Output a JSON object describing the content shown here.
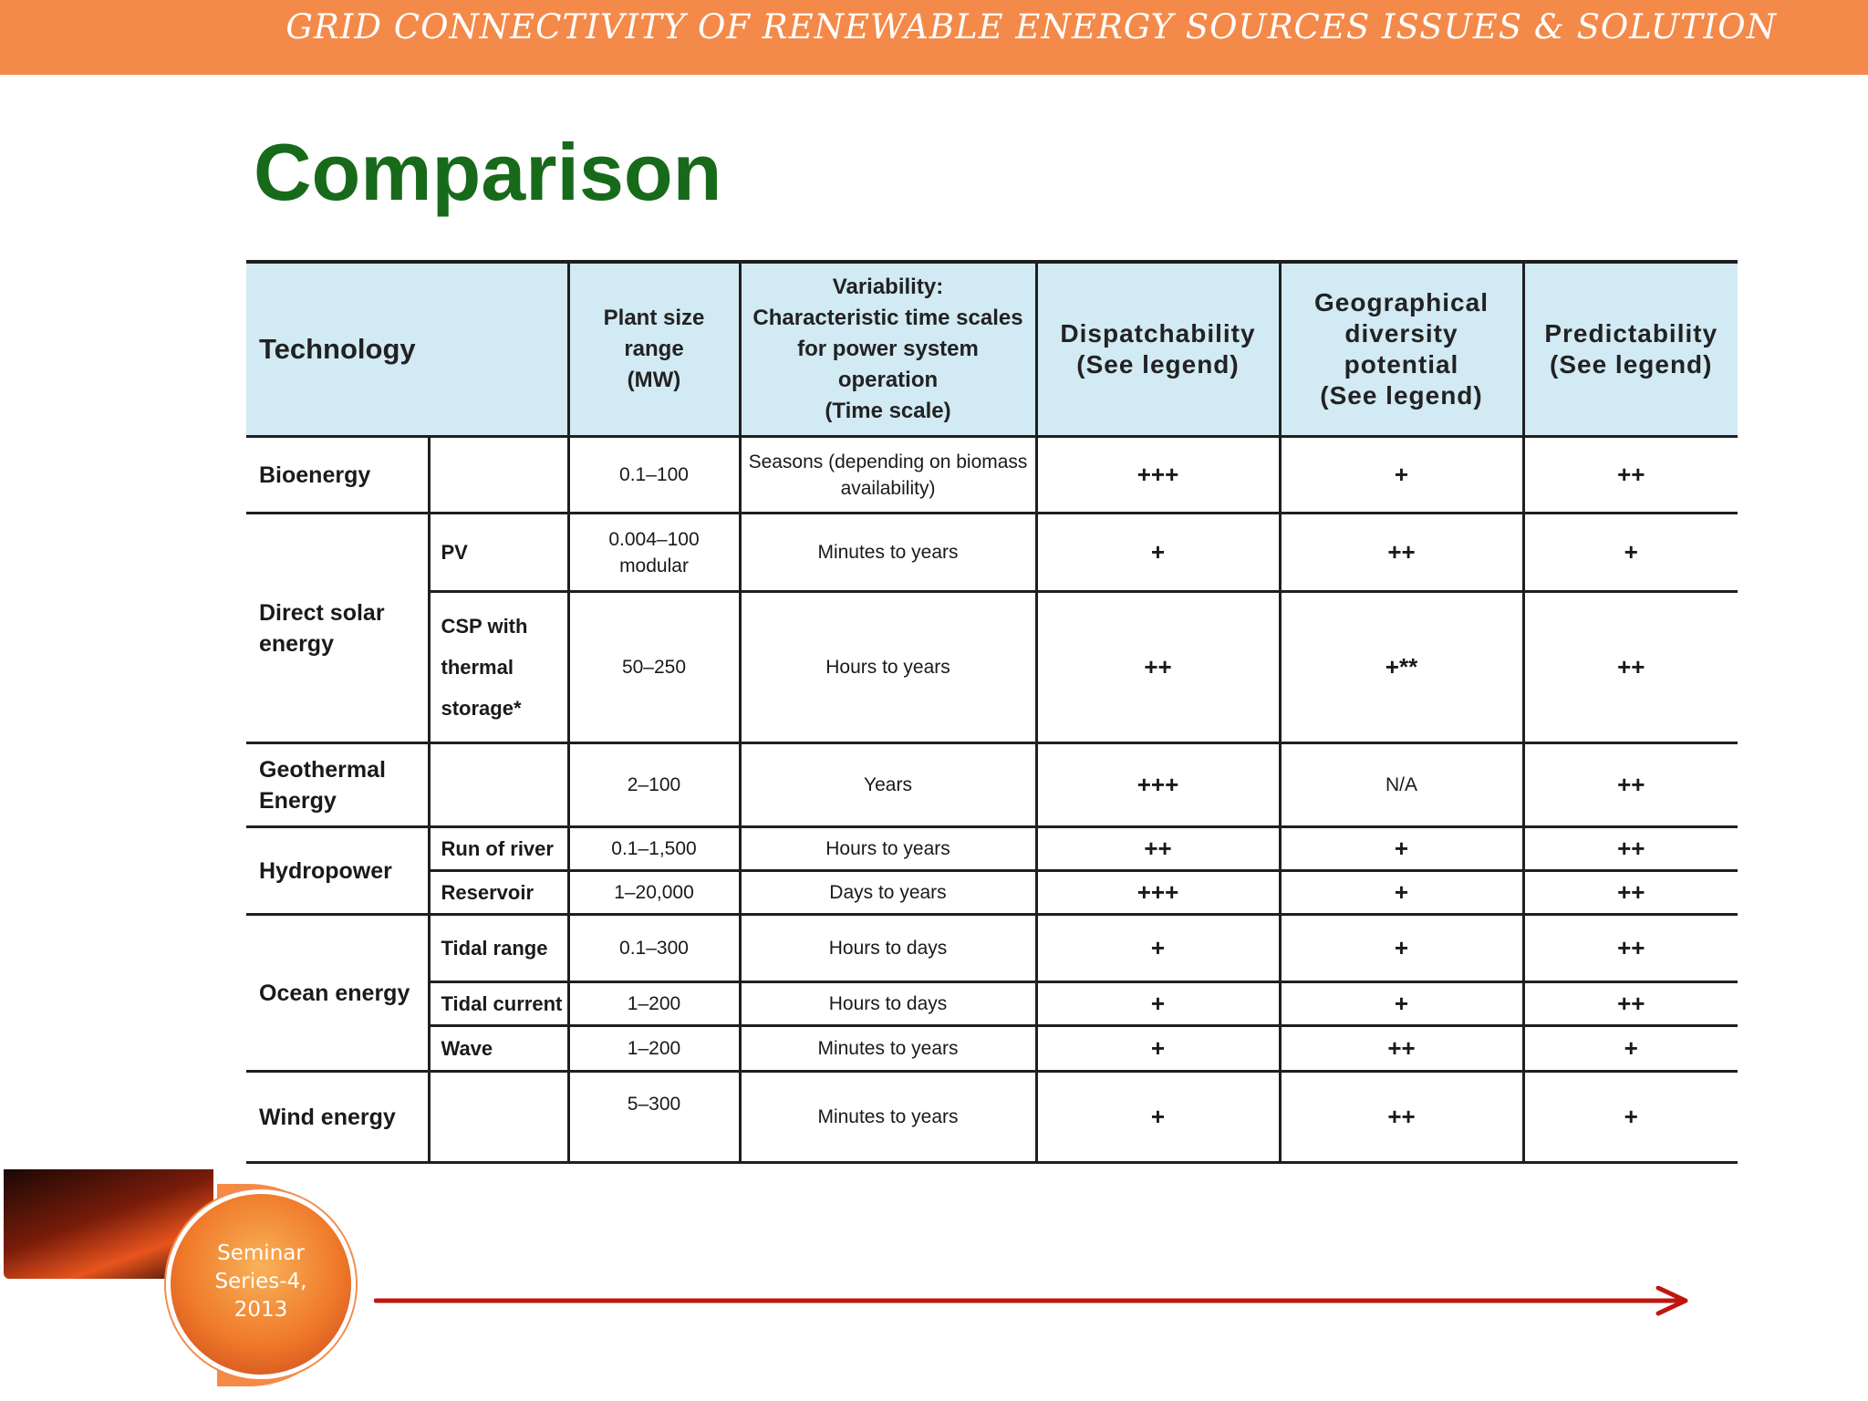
{
  "banner": {
    "title": "GRID CONNECTIVITY OF RENEWABLE ENERGY SOURCES ISSUES & SOLUTION"
  },
  "slide": {
    "title": "Comparison"
  },
  "table": {
    "headers": {
      "technology": "Technology",
      "plant_size": [
        "Plant size range",
        "(MW)"
      ],
      "variability": [
        "Variability:",
        "Characteristic time scales",
        "for power system operation",
        "(Time scale)"
      ],
      "dispatchability": [
        "Dispatchability",
        "(See legend)"
      ],
      "geo_diversity": [
        "Geographical",
        "diversity",
        "potential",
        "(See legend)"
      ],
      "predictability": [
        "Predictability",
        "(See legend)"
      ]
    },
    "rows": {
      "bioenergy": {
        "tech": "Bioenergy",
        "size": "0.1–100",
        "variability": [
          "Seasons (depending on biomass",
          "availability)"
        ],
        "dispatch": "+++",
        "geo": "+",
        "predict": "++"
      },
      "solar": {
        "tech": [
          "Direct solar",
          "energy"
        ],
        "pv": {
          "sub": "PV",
          "size": [
            "0.004–100",
            "modular"
          ],
          "variability": "Minutes to years",
          "dispatch": "+",
          "geo": "++",
          "predict": "+"
        },
        "csp": {
          "sub": [
            "CSP with",
            "thermal",
            "storage*"
          ],
          "size": "50–250",
          "variability": "Hours to years",
          "dispatch": "++",
          "geo": "+**",
          "predict": "++"
        }
      },
      "geothermal": {
        "tech": [
          "Geothermal",
          "Energy"
        ],
        "size": "2–100",
        "variability": "Years",
        "dispatch": "+++",
        "geo": "N/A",
        "predict": "++"
      },
      "hydro": {
        "tech": "Hydropower",
        "run_of_river": {
          "sub": "Run of river",
          "size": "0.1–1,500",
          "variability": "Hours to years",
          "dispatch": "++",
          "geo": "+",
          "predict": "++"
        },
        "reservoir": {
          "sub": "Reservoir",
          "size": "1–20,000",
          "variability": "Days to years",
          "dispatch": "+++",
          "geo": "+",
          "predict": "++"
        }
      },
      "ocean": {
        "tech": "Ocean energy",
        "tidal_range": {
          "sub": "Tidal range",
          "size": "0.1–300",
          "variability": "Hours to days",
          "dispatch": "+",
          "geo": "+",
          "predict": "++"
        },
        "tidal_current": {
          "sub": "Tidal current",
          "size": "1–200",
          "variability": "Hours to days",
          "dispatch": "+",
          "geo": "+",
          "predict": "++"
        },
        "wave": {
          "sub": "Wave",
          "size": "1–200",
          "variability": "Minutes to years",
          "dispatch": "+",
          "geo": "++",
          "predict": "+"
        }
      },
      "wind": {
        "tech": "Wind energy",
        "size": "5–300",
        "variability": "Minutes to years",
        "dispatch": "+",
        "geo": "++",
        "predict": "+"
      }
    }
  },
  "footer": {
    "badge": [
      "Seminar",
      "Series-4,",
      "2013"
    ],
    "arrow_color": "#c0160e"
  }
}
